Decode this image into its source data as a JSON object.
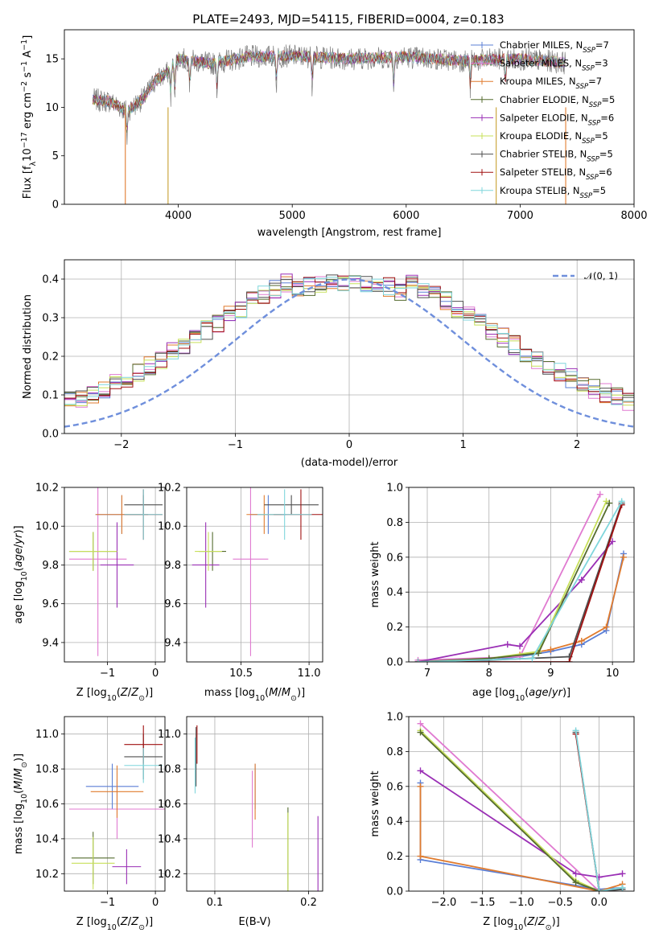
{
  "figure_title": "PLATE=2493, MJD=54115, FIBERID=0004, z=0.183",
  "series_colors": {
    "Chabrier MILES": "#5b7fd6",
    "Salpeter MILES": "#e07ad0",
    "Kroupa MILES": "#e07b2e",
    "Chabrier ELODIE": "#556b2f",
    "Salpeter ELODIE": "#9a2fb5",
    "Kroupa ELODIE": "#c7e05a",
    "Chabrier STELIB": "#4f4f4f",
    "Salpeter STELIB": "#a01010",
    "Kroupa STELIB": "#7fd6dc"
  },
  "chart_data": [
    {
      "id": "spectrum",
      "type": "line",
      "title": "PLATE=2493, MJD=54115, FIBERID=0004, z=0.183",
      "xlabel": "wavelength [Angstrom, rest frame]",
      "ylabel": "Flux [f_λ 10^-17 erg cm^-2 s^-1 A^-1]",
      "xlim": [
        3000,
        8000
      ],
      "ylim": [
        0,
        18
      ],
      "xticks": [
        4000,
        5000,
        6000,
        7000,
        8000
      ],
      "yticks": [
        0,
        5,
        10,
        15
      ],
      "grid": false,
      "legend_position": "top-right",
      "legend": [
        "Chabrier MILES, N_SSP=7",
        "Salpeter MILES, N_SSP=3",
        "Kroupa MILES, N_SSP=7",
        "Chabrier ELODIE, N_SSP=5",
        "Salpeter ELODIE, N_SSP=6",
        "Kroupa ELODIE, N_SSP=5",
        "Chabrier STELIB, N_SSP=5",
        "Salpeter STELIB, N_SSP=6",
        "Kroupa STELIB, N_SSP=5"
      ],
      "data_range_x": [
        3250,
        7400
      ],
      "data_curve": [
        [
          3250,
          10.8
        ],
        [
          3400,
          10.6
        ],
        [
          3550,
          9.6
        ],
        [
          3700,
          11.0
        ],
        [
          3800,
          12.8
        ],
        [
          3900,
          13.5
        ],
        [
          4000,
          15.0
        ],
        [
          4300,
          14.5
        ],
        [
          4600,
          15.2
        ],
        [
          5000,
          15.3
        ],
        [
          5500,
          15.0
        ],
        [
          6000,
          15.2
        ],
        [
          6500,
          14.8
        ],
        [
          7000,
          15.0
        ],
        [
          7400,
          14.6
        ]
      ]
    },
    {
      "id": "residuals",
      "type": "line",
      "xlabel": "(data-model)/error",
      "ylabel": "Normed distribution",
      "xlim": [
        -2.5,
        2.5
      ],
      "ylim": [
        0,
        0.45
      ],
      "xticks": [
        -2,
        -1,
        0,
        1,
        2
      ],
      "yticks": [
        0.0,
        0.1,
        0.2,
        0.3,
        0.4
      ],
      "grid": true,
      "legend_position": "top-right",
      "legend": [
        "N(0,1)"
      ],
      "bins": [
        -2.5,
        2.5,
        50
      ]
    },
    {
      "id": "age-metallicity",
      "type": "scatter",
      "xlabel": "Z [log10(Z/Z⊙)]",
      "ylabel": "age [log10(age/yr)]",
      "xlim": [
        -1.9,
        0.2
      ],
      "ylim": [
        9.3,
        10.2
      ],
      "xticks": [
        -1,
        0
      ],
      "yticks": [
        9.4,
        9.6,
        9.8,
        10.0,
        10.2
      ],
      "grid": true,
      "points": [
        {
          "series": "Chabrier MILES",
          "x": -0.7,
          "y": 10.06,
          "xerr": 0.55,
          "yerr": 0.1
        },
        {
          "series": "Salpeter MILES",
          "x": -1.2,
          "y": 9.83,
          "xerr": 0.6,
          "yerr": 0.5
        },
        {
          "series": "Kroupa MILES",
          "x": -0.7,
          "y": 10.06,
          "xerr": 0.55,
          "yerr": 0.1
        },
        {
          "series": "Chabrier ELODIE",
          "x": -1.3,
          "y": 9.87,
          "xerr": 0.5,
          "yerr": 0.1
        },
        {
          "series": "Salpeter ELODIE",
          "x": -0.8,
          "y": 9.8,
          "xerr": 0.35,
          "yerr": 0.22
        },
        {
          "series": "Kroupa ELODIE",
          "x": -1.3,
          "y": 9.87,
          "xerr": 0.5,
          "yerr": 0.1
        },
        {
          "series": "Chabrier STELIB",
          "x": -0.25,
          "y": 10.11,
          "xerr": 0.4,
          "yerr": 0.05
        },
        {
          "series": "Salpeter STELIB",
          "x": -0.25,
          "y": 10.06,
          "xerr": 0.4,
          "yerr": 0.13
        },
        {
          "series": "Kroupa STELIB",
          "x": -0.25,
          "y": 10.06,
          "xerr": 0.4,
          "yerr": 0.13
        }
      ]
    },
    {
      "id": "age-mass",
      "type": "scatter",
      "xlabel": "mass [log10(M/M⊙)]",
      "ylabel": "",
      "xlim": [
        10.1,
        11.1
      ],
      "ylim": [
        9.3,
        10.2
      ],
      "xticks": [
        10.5,
        11.0
      ],
      "yticks": [
        9.4,
        9.6,
        9.8,
        10.0,
        10.2
      ],
      "grid": true,
      "points": [
        {
          "series": "Chabrier MILES",
          "x": 10.7,
          "y": 10.06,
          "xerr": 0.13,
          "yerr": 0.1
        },
        {
          "series": "Salpeter MILES",
          "x": 10.57,
          "y": 9.83,
          "xerr": 0.13,
          "yerr": 0.5
        },
        {
          "series": "Kroupa MILES",
          "x": 10.67,
          "y": 10.06,
          "xerr": 0.13,
          "yerr": 0.1
        },
        {
          "series": "Chabrier ELODIE",
          "x": 10.29,
          "y": 9.87,
          "xerr": 0.1,
          "yerr": 0.1
        },
        {
          "series": "Salpeter ELODIE",
          "x": 10.24,
          "y": 9.8,
          "xerr": 0.1,
          "yerr": 0.22
        },
        {
          "series": "Kroupa ELODIE",
          "x": 10.26,
          "y": 9.87,
          "xerr": 0.1,
          "yerr": 0.1
        },
        {
          "series": "Chabrier STELIB",
          "x": 10.87,
          "y": 10.11,
          "xerr": 0.2,
          "yerr": 0.05
        },
        {
          "series": "Salpeter STELIB",
          "x": 10.94,
          "y": 10.06,
          "xerr": 0.2,
          "yerr": 0.13
        },
        {
          "series": "Kroupa STELIB",
          "x": 10.82,
          "y": 10.06,
          "xerr": 0.2,
          "yerr": 0.13
        }
      ]
    },
    {
      "id": "weight-age",
      "type": "line",
      "xlabel": "age [log10(age/yr)]",
      "ylabel": "mass weight",
      "xlim": [
        6.7,
        10.35
      ],
      "ylim": [
        0,
        1
      ],
      "xticks": [
        7,
        8,
        9,
        10
      ],
      "yticks": [
        0.0,
        0.2,
        0.4,
        0.6,
        0.8,
        1.0
      ],
      "grid": true,
      "series": [
        {
          "series": "Chabrier MILES",
          "points": [
            [
              6.85,
              0.0
            ],
            [
              8.0,
              0.01
            ],
            [
              8.5,
              0.03
            ],
            [
              9.0,
              0.06
            ],
            [
              9.5,
              0.1
            ],
            [
              9.9,
              0.18
            ],
            [
              10.18,
              0.62
            ]
          ]
        },
        {
          "series": "Kroupa MILES",
          "points": [
            [
              6.85,
              0.0
            ],
            [
              8.0,
              0.02
            ],
            [
              8.5,
              0.04
            ],
            [
              9.0,
              0.07
            ],
            [
              9.5,
              0.12
            ],
            [
              9.9,
              0.2
            ],
            [
              10.18,
              0.6
            ]
          ]
        },
        {
          "series": "Salpeter MILES",
          "points": [
            [
              6.85,
              0.01
            ],
            [
              8.5,
              0.03
            ],
            [
              9.8,
              0.96
            ]
          ]
        },
        {
          "series": "Salpeter ELODIE",
          "points": [
            [
              6.85,
              0.0
            ],
            [
              8.3,
              0.1
            ],
            [
              8.5,
              0.09
            ],
            [
              9.5,
              0.47
            ],
            [
              10.0,
              0.69
            ]
          ]
        },
        {
          "series": "Kroupa ELODIE",
          "points": [
            [
              6.85,
              0.0
            ],
            [
              8.0,
              0.02
            ],
            [
              8.8,
              0.06
            ],
            [
              9.9,
              0.92
            ]
          ]
        },
        {
          "series": "Chabrier ELODIE",
          "points": [
            [
              6.85,
              0.0
            ],
            [
              8.0,
              0.02
            ],
            [
              8.8,
              0.05
            ],
            [
              9.95,
              0.91
            ]
          ]
        },
        {
          "series": "Chabrier STELIB",
          "points": [
            [
              6.85,
              0.0
            ],
            [
              8.0,
              0.01
            ],
            [
              9.3,
              0.03
            ],
            [
              10.15,
              0.91
            ]
          ]
        },
        {
          "series": "Salpeter STELIB",
          "points": [
            [
              6.85,
              0.0
            ],
            [
              9.3,
              0.0
            ],
            [
              10.15,
              0.9
            ]
          ]
        },
        {
          "series": "Kroupa STELIB",
          "points": [
            [
              6.85,
              0.0
            ],
            [
              8.7,
              0.02
            ],
            [
              10.15,
              0.92
            ]
          ]
        }
      ]
    },
    {
      "id": "mass-metallicity",
      "type": "scatter",
      "xlabel": "Z [log10(Z/Z⊙)]",
      "ylabel": "mass [log10(M/M⊙)]",
      "xlim": [
        -1.9,
        0.2
      ],
      "ylim": [
        10.1,
        11.1
      ],
      "xticks": [
        -1,
        0
      ],
      "yticks": [
        10.2,
        10.4,
        10.6,
        10.8,
        11.0
      ],
      "grid": true,
      "points": [
        {
          "series": "Chabrier MILES",
          "x": -0.9,
          "y": 10.7,
          "xerr": 0.55,
          "yerr": 0.13
        },
        {
          "series": "Salpeter MILES",
          "x": -0.8,
          "y": 10.57,
          "xerr": 1.0,
          "yerr": 0.17
        },
        {
          "series": "Kroupa MILES",
          "x": -0.8,
          "y": 10.67,
          "xerr": 0.55,
          "yerr": 0.15
        },
        {
          "series": "Chabrier ELODIE",
          "x": -1.3,
          "y": 10.29,
          "xerr": 0.45,
          "yerr": 0.15
        },
        {
          "series": "Salpeter ELODIE",
          "x": -0.6,
          "y": 10.24,
          "xerr": 0.3,
          "yerr": 0.1
        },
        {
          "series": "Kroupa ELODIE",
          "x": -1.3,
          "y": 10.26,
          "xerr": 0.45,
          "yerr": 0.15
        },
        {
          "series": "Chabrier STELIB",
          "x": -0.25,
          "y": 10.87,
          "xerr": 0.4,
          "yerr": 0.13
        },
        {
          "series": "Salpeter STELIB",
          "x": -0.25,
          "y": 10.94,
          "xerr": 0.4,
          "yerr": 0.11
        },
        {
          "series": "Kroupa STELIB",
          "x": -0.25,
          "y": 10.82,
          "xerr": 0.4,
          "yerr": 0.1
        }
      ]
    },
    {
      "id": "mass-ebv",
      "type": "scatter",
      "xlabel": "E(B-V)",
      "ylabel": "",
      "xlim": [
        0.07,
        0.215
      ],
      "ylim": [
        10.1,
        11.1
      ],
      "xticks": [
        0.1,
        0.2
      ],
      "yticks": [
        10.2,
        10.4,
        10.6,
        10.8,
        11.0
      ],
      "grid": true,
      "points": [
        {
          "series": "Chabrier MILES",
          "x": 0.143,
          "y": 10.7,
          "xerr": 0.0,
          "yerr": 0.13
        },
        {
          "series": "Salpeter MILES",
          "x": 0.14,
          "y": 10.57,
          "xerr": 0.0,
          "yerr": 0.22
        },
        {
          "series": "Kroupa MILES",
          "x": 0.143,
          "y": 10.67,
          "xerr": 0.0,
          "yerr": 0.16
        },
        {
          "series": "Chabrier ELODIE",
          "x": 0.178,
          "y": 10.29,
          "xerr": 0.0,
          "yerr": 0.29
        },
        {
          "series": "Salpeter ELODIE",
          "x": 0.21,
          "y": 10.24,
          "xerr": 0.0,
          "yerr": 0.29
        },
        {
          "series": "Kroupa ELODIE",
          "x": 0.178,
          "y": 10.26,
          "xerr": 0.0,
          "yerr": 0.29
        },
        {
          "series": "Chabrier STELIB",
          "x": 0.08,
          "y": 10.87,
          "xerr": 0.0,
          "yerr": 0.17
        },
        {
          "series": "Salpeter STELIB",
          "x": 0.081,
          "y": 10.94,
          "xerr": 0.0,
          "yerr": 0.11
        },
        {
          "series": "Kroupa STELIB",
          "x": 0.079,
          "y": 10.82,
          "xerr": 0.0,
          "yerr": 0.16
        }
      ]
    },
    {
      "id": "weight-metallicity",
      "type": "line",
      "xlabel": "Z [log10(Z/Z⊙)]",
      "ylabel": "mass weight",
      "xlim": [
        -2.45,
        0.45
      ],
      "ylim": [
        0,
        1
      ],
      "xticks": [
        -2.0,
        -1.5,
        -1.0,
        -0.5,
        0.0
      ],
      "yticks": [
        0.0,
        0.2,
        0.4,
        0.6,
        0.8,
        1.0
      ],
      "grid": true,
      "series": [
        {
          "series": "Chabrier MILES",
          "points": [
            [
              -2.3,
              0.62
            ],
            [
              -2.3,
              0.18
            ],
            [
              0.0,
              0.01
            ],
            [
              0.3,
              0.02
            ]
          ]
        },
        {
          "series": "Kroupa MILES",
          "points": [
            [
              -2.3,
              0.6
            ],
            [
              -2.3,
              0.2
            ],
            [
              0.0,
              0.0
            ],
            [
              0.3,
              0.04
            ]
          ]
        },
        {
          "series": "Salpeter MILES",
          "points": [
            [
              -2.3,
              0.96
            ],
            [
              0.0,
              0.0
            ]
          ]
        },
        {
          "series": "Salpeter ELODIE",
          "points": [
            [
              -2.3,
              0.69
            ],
            [
              -0.3,
              0.1
            ],
            [
              0.0,
              0.08
            ],
            [
              0.3,
              0.1
            ]
          ]
        },
        {
          "series": "Kroupa ELODIE",
          "points": [
            [
              -2.3,
              0.92
            ],
            [
              -0.3,
              0.06
            ],
            [
              0.0,
              0.0
            ]
          ]
        },
        {
          "series": "Chabrier ELODIE",
          "points": [
            [
              -2.3,
              0.91
            ],
            [
              -0.3,
              0.05
            ],
            [
              0.0,
              0.0
            ]
          ]
        },
        {
          "series": "Chabrier STELIB",
          "points": [
            [
              -0.3,
              0.91
            ],
            [
              0.0,
              0.0
            ],
            [
              0.3,
              0.01
            ]
          ]
        },
        {
          "series": "Salpeter STELIB",
          "points": [
            [
              -0.3,
              0.9
            ],
            [
              0.0,
              0.0
            ]
          ]
        },
        {
          "series": "Kroupa STELIB",
          "points": [
            [
              -0.3,
              0.92
            ],
            [
              0.0,
              0.0
            ],
            [
              0.3,
              0.02
            ]
          ]
        }
      ]
    }
  ]
}
